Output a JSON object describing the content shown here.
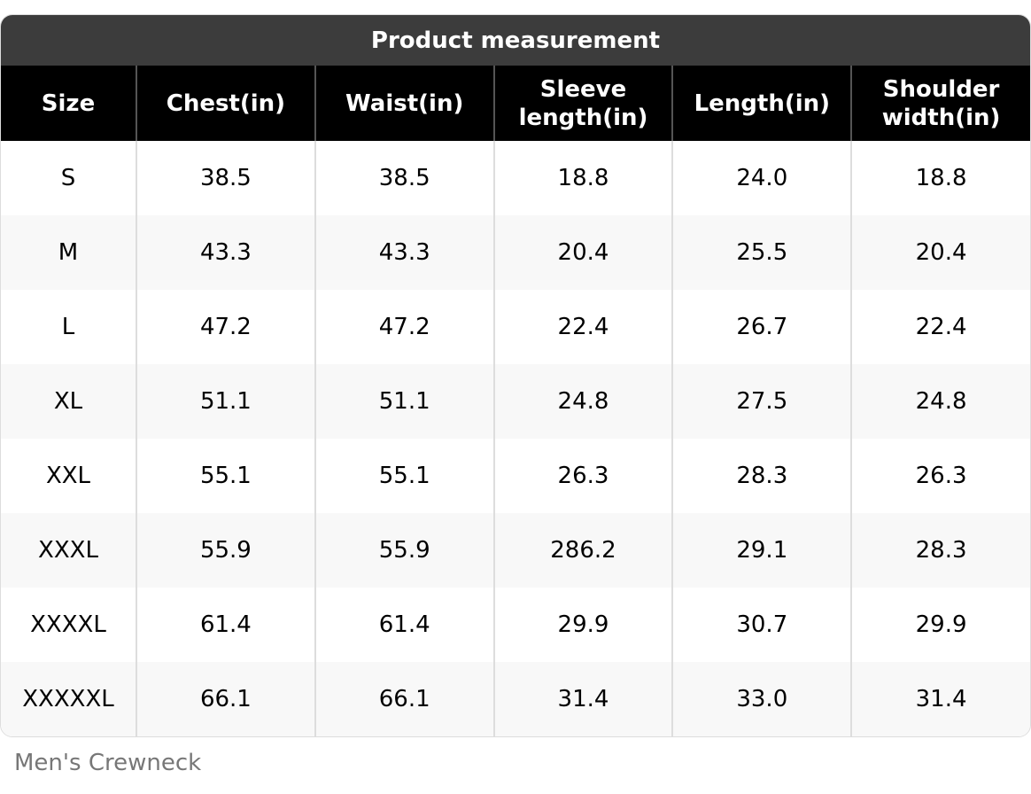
{
  "header": {
    "title": "Product measurement"
  },
  "table": {
    "columns": [
      "Size",
      "Chest(in)",
      "Waist(in)",
      "Sleeve length(in)",
      "Length(in)",
      "Shoulder width(in)"
    ],
    "rows": [
      [
        "S",
        "38.5",
        "38.5",
        "18.8",
        "24.0",
        "18.8"
      ],
      [
        "M",
        "43.3",
        "43.3",
        "20.4",
        "25.5",
        "20.4"
      ],
      [
        "L",
        "47.2",
        "47.2",
        "22.4",
        "26.7",
        "22.4"
      ],
      [
        "XL",
        "51.1",
        "51.1",
        "24.8",
        "27.5",
        "24.8"
      ],
      [
        "XXL",
        "55.1",
        "55.1",
        "26.3",
        "28.3",
        "26.3"
      ],
      [
        "XXXL",
        "55.9",
        "55.9",
        "286.2",
        "29.1",
        "28.3"
      ],
      [
        "XXXXL",
        "61.4",
        "61.4",
        "29.9",
        "30.7",
        "29.9"
      ],
      [
        "XXXXXL",
        "66.1",
        "66.1",
        "31.4",
        "33.0",
        "31.4"
      ]
    ]
  },
  "caption": "Men's Crewneck"
}
